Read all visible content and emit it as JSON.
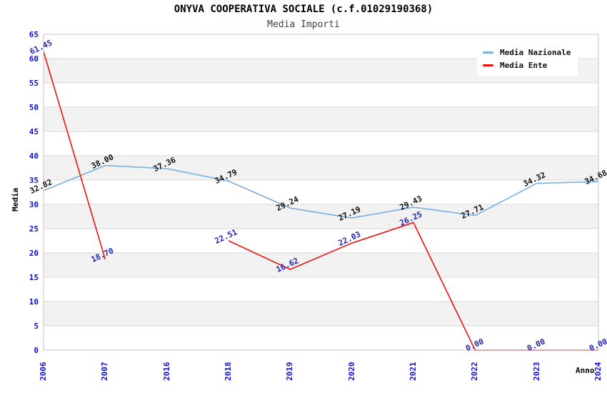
{
  "chart_data": {
    "type": "line",
    "title": "ONYVA COOPERATIVA SOCIALE (c.f.01029190368)",
    "subtitle": "Media Importi",
    "xlabel": "Anno",
    "ylabel": "Media",
    "ylim": [
      0,
      65
    ],
    "ytick_step": 5,
    "grid": "horizontal-gridlines-with-alternating-bands",
    "legend_position": "top-right",
    "categories": [
      "2006",
      "2007",
      "2016",
      "2018",
      "2019",
      "2020",
      "2021",
      "2022",
      "2023",
      "2024"
    ],
    "series": [
      {
        "name": "Media Nazionale",
        "color": "#7aaede",
        "label_color": "#111111",
        "values": [
          32.82,
          38.0,
          37.36,
          34.79,
          29.24,
          27.19,
          29.43,
          27.71,
          34.32,
          34.68
        ]
      },
      {
        "name": "Media Ente",
        "color": "#ee1111",
        "label_color": "#2424b2",
        "values": [
          61.45,
          18.7,
          null,
          22.51,
          16.62,
          22.03,
          26.25,
          0.0,
          0.0,
          0.0
        ]
      }
    ],
    "colors": {
      "tick_label": "#0f0fd2",
      "band_fill": "#f2f2f2",
      "gridline": "#d9d9d9",
      "plot_border": "#c6c6c6",
      "background": "#ffffff"
    }
  }
}
